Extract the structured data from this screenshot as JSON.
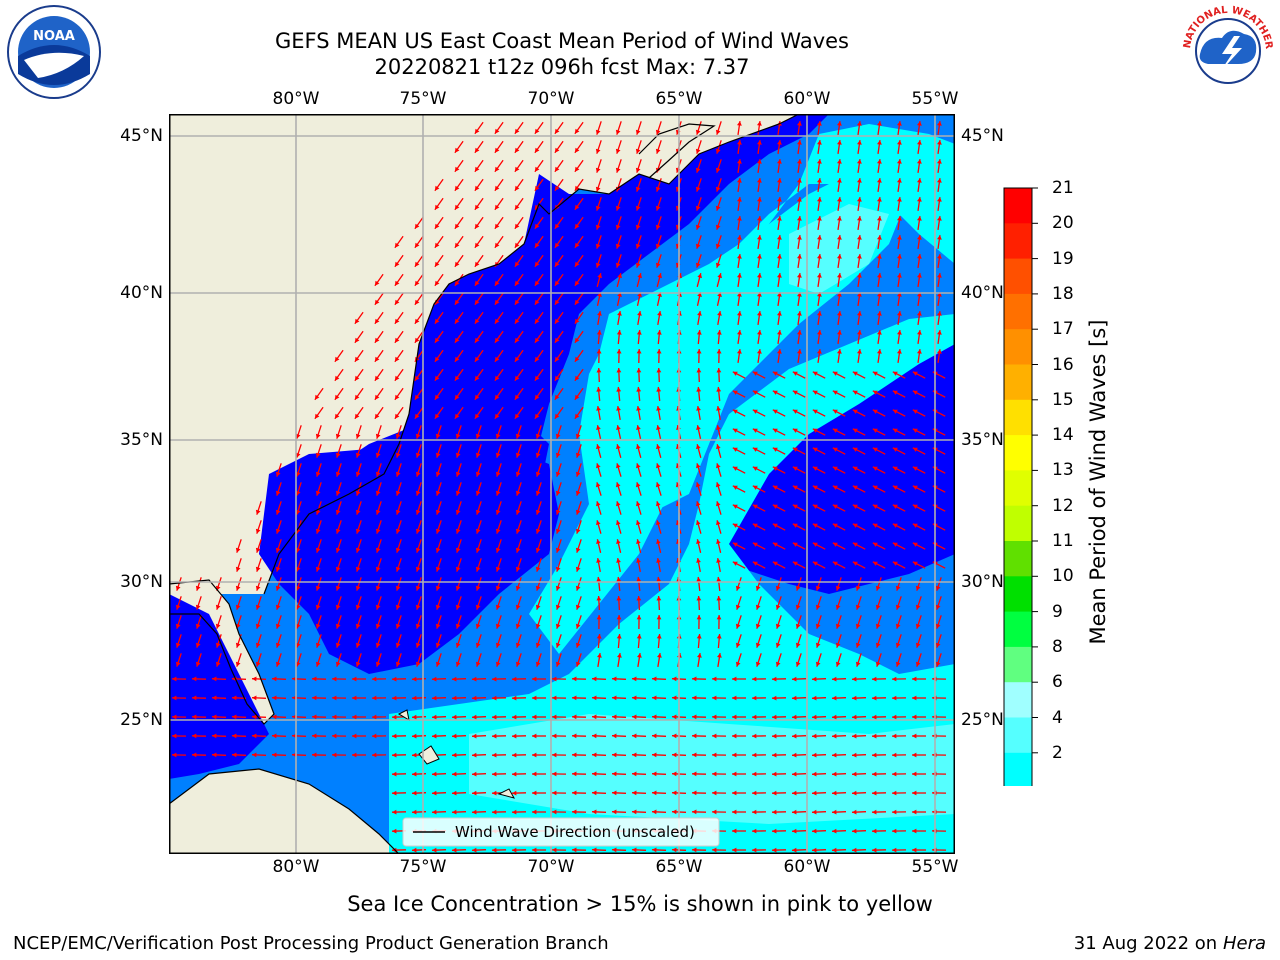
{
  "header": {
    "title_line1": "GEFS MEAN US East Coast Mean Period of Wind Waves",
    "title_line2": "20220821 t12z 096h fcst   Max: 7.37",
    "left_logo_text": "NOAA",
    "right_logo_text": "NATIONAL WEATHER SERVICE"
  },
  "map": {
    "lon_labels": [
      "80°W",
      "75°W",
      "70°W",
      "65°W",
      "60°W",
      "55°W"
    ],
    "lat_labels": [
      "45°N",
      "40°N",
      "35°N",
      "30°N",
      "25°N"
    ],
    "legend_label": "Wind Wave Direction (unscaled)",
    "colors": {
      "land": "#efeedc",
      "deep_blue": "#0000ff",
      "mid_blue": "#0080ff",
      "cyan": "#00ffff",
      "light_cyan": "#55ffff",
      "arrow": "#ff0000",
      "grid": "#b0b0b0"
    }
  },
  "colorbar": {
    "label": "Mean Period of Wind Waves [s]",
    "ticks": [
      "21",
      "20",
      "19",
      "18",
      "17",
      "16",
      "15",
      "14",
      "13",
      "12",
      "11",
      "10",
      "9",
      "8",
      "6",
      "4",
      "2"
    ],
    "colors": [
      "#ff0000",
      "#ff2000",
      "#ff5000",
      "#ff7000",
      "#ff9000",
      "#ffb000",
      "#ffe000",
      "#ffff00",
      "#e0ff00",
      "#c0ff00",
      "#60e000",
      "#00e000",
      "#00ff40",
      "#60ff80",
      "#a0ffff",
      "#55ffff",
      "#00ffff",
      "#0080ff"
    ],
    "extend_color": "#0000ff"
  },
  "footer": {
    "note": "Sea Ice Concentration > 15% is shown in pink to yellow",
    "credit": "NCEP/EMC/Verification Post Processing Product Generation Branch",
    "date": "31 Aug 2022 on",
    "machine": "Hera"
  }
}
